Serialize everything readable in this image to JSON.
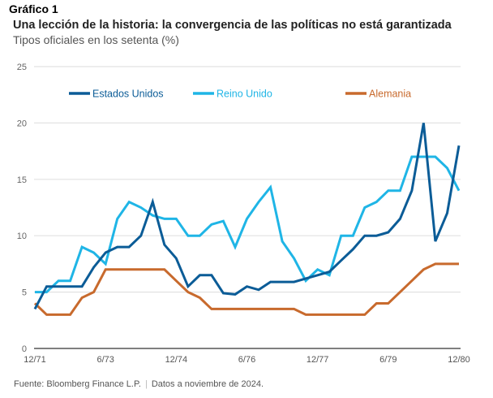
{
  "header": {
    "figure_label": "Gráfico 1",
    "title": "Una lección de la historia: la convergencia de las políticas no está garantizada",
    "subtitle": "Tipos oficiales en los setenta (%)"
  },
  "footer": {
    "source": "Fuente: Bloomberg Finance L.P.",
    "note": "Datos a noviembre de 2024."
  },
  "colors": {
    "us": "#0b5c97",
    "uk": "#1fb5e6",
    "de": "#c86a2d",
    "grid": "#e2e2e2",
    "axis": "#555555"
  },
  "chart_data": {
    "type": "line",
    "title": "Una lección de la historia: la convergencia de las políticas no está garantizada",
    "subtitle": "Tipos oficiales en los setenta (%)",
    "xlabel": "",
    "ylabel": "%",
    "ylim": [
      0,
      25
    ],
    "yticks": [
      0,
      5,
      10,
      15,
      20,
      25
    ],
    "xtick_labels": [
      "12/71",
      "6/73",
      "12/74",
      "6/76",
      "12/77",
      "6/79",
      "12/80"
    ],
    "xtick_index": [
      0,
      6,
      12,
      18,
      24,
      30,
      36
    ],
    "x_frequency": "quarterly, 12/71 to 12/80",
    "grid": true,
    "legend_position": "top",
    "series": [
      {
        "name": "Estados Unidos",
        "color_key": "us",
        "values": [
          3.5,
          5.5,
          5.5,
          5.5,
          5.5,
          7.2,
          8.5,
          9,
          9,
          10,
          13,
          9.2,
          8,
          5.5,
          6.5,
          6.5,
          4.9,
          4.8,
          5.5,
          5.2,
          5.9,
          5.9,
          5.9,
          6.2,
          6.5,
          6.8,
          7.8,
          8.8,
          10,
          10,
          10.3,
          11.5,
          14,
          20,
          9.5,
          12,
          18
        ]
      },
      {
        "name": "Reino Unido",
        "color_key": "uk",
        "values": [
          5,
          5,
          6,
          6,
          9,
          8.5,
          7.5,
          11.5,
          13,
          12.5,
          11.8,
          11.5,
          11.5,
          10,
          10,
          11,
          11.3,
          9,
          11.5,
          13,
          14.3,
          9.5,
          8,
          6,
          7,
          6.5,
          10,
          10,
          12.5,
          13,
          14,
          14,
          17,
          17,
          17,
          16,
          14
        ]
      },
      {
        "name": "Alemania",
        "color_key": "de",
        "values": [
          4,
          3,
          3,
          3,
          4.5,
          5,
          7,
          7,
          7,
          7,
          7,
          7,
          6,
          5,
          4.5,
          3.5,
          3.5,
          3.5,
          3.5,
          3.5,
          3.5,
          3.5,
          3.5,
          3,
          3,
          3,
          3,
          3,
          3,
          4,
          4,
          5,
          6,
          7,
          7.5,
          7.5,
          7.5
        ]
      }
    ]
  }
}
